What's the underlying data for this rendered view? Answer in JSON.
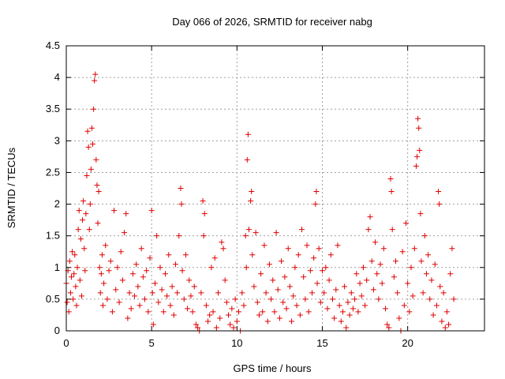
{
  "chart_data": {
    "type": "scatter",
    "title": "Day 066 of 2026, SRMTID for receiver nabg",
    "xlabel": "GPS time / hours",
    "ylabel": "SRMTID / TECUs",
    "xlim": [
      0,
      24.5
    ],
    "ylim": [
      0,
      4.5
    ],
    "x_ticks": [
      0,
      5,
      10,
      15,
      20
    ],
    "x_tick_labels": [
      "0",
      "5",
      "10",
      "15",
      "20"
    ],
    "y_ticks": [
      0,
      0.5,
      1,
      1.5,
      2,
      2.5,
      3,
      3.5,
      4,
      4.5
    ],
    "y_tick_labels": [
      "0",
      "0.5",
      "1",
      "1.5",
      "2",
      "2.5",
      "3",
      "3.5",
      "4",
      "4.5"
    ],
    "grid": true,
    "marker": "plus",
    "series": [
      {
        "name": "SRMTID",
        "color": "#e00000",
        "points": [
          [
            0.0,
            0.75
          ],
          [
            0.05,
            0.45
          ],
          [
            0.1,
            0.95
          ],
          [
            0.15,
            0.3
          ],
          [
            0.2,
            1.1
          ],
          [
            0.25,
            0.6
          ],
          [
            0.3,
            0.85
          ],
          [
            0.35,
            1.25
          ],
          [
            0.4,
            0.5
          ],
          [
            0.45,
            0.9
          ],
          [
            0.5,
            1.2
          ],
          [
            0.55,
            0.7
          ],
          [
            0.6,
            0.4
          ],
          [
            0.65,
            1.0
          ],
          [
            0.7,
            1.6
          ],
          [
            0.75,
            1.9
          ],
          [
            0.8,
            0.8
          ],
          [
            0.85,
            1.45
          ],
          [
            0.9,
            0.55
          ],
          [
            0.95,
            1.75
          ],
          [
            1.0,
            2.05
          ],
          [
            1.05,
            1.3
          ],
          [
            1.1,
            0.95
          ],
          [
            1.15,
            1.85
          ],
          [
            1.2,
            2.45
          ],
          [
            1.25,
            3.15
          ],
          [
            1.3,
            2.9
          ],
          [
            1.35,
            1.6
          ],
          [
            1.4,
            2.0
          ],
          [
            1.45,
            2.55
          ],
          [
            1.5,
            3.2
          ],
          [
            1.55,
            2.95
          ],
          [
            1.6,
            3.5
          ],
          [
            1.65,
            3.95
          ],
          [
            1.7,
            4.05
          ],
          [
            1.75,
            2.7
          ],
          [
            1.8,
            2.3
          ],
          [
            1.85,
            1.7
          ],
          [
            1.9,
            2.2
          ],
          [
            1.95,
            1.0
          ],
          [
            2.0,
            0.6
          ],
          [
            2.05,
            0.9
          ],
          [
            2.1,
            1.2
          ],
          [
            2.15,
            0.4
          ],
          [
            2.2,
            0.75
          ],
          [
            2.3,
            1.35
          ],
          [
            2.4,
            0.5
          ],
          [
            2.5,
            0.95
          ],
          [
            2.6,
            1.1
          ],
          [
            2.7,
            0.3
          ],
          [
            2.8,
            1.9
          ],
          [
            2.9,
            0.65
          ],
          [
            3.0,
            1.0
          ],
          [
            3.1,
            0.45
          ],
          [
            3.2,
            1.25
          ],
          [
            3.3,
            0.8
          ],
          [
            3.4,
            1.55
          ],
          [
            3.5,
            1.85
          ],
          [
            3.6,
            0.2
          ],
          [
            3.7,
            0.6
          ],
          [
            3.8,
            0.35
          ],
          [
            3.9,
            0.9
          ],
          [
            4.0,
            0.55
          ],
          [
            4.1,
            1.05
          ],
          [
            4.2,
            0.7
          ],
          [
            4.3,
            0.4
          ],
          [
            4.4,
            1.3
          ],
          [
            4.5,
            0.85
          ],
          [
            4.6,
            0.5
          ],
          [
            4.7,
            0.95
          ],
          [
            4.8,
            0.3
          ],
          [
            4.9,
            1.15
          ],
          [
            5.0,
            1.9
          ],
          [
            5.05,
            0.6
          ],
          [
            5.1,
            0.1
          ],
          [
            5.2,
            0.75
          ],
          [
            5.3,
            1.5
          ],
          [
            5.4,
            0.45
          ],
          [
            5.5,
            1.0
          ],
          [
            5.6,
            0.65
          ],
          [
            5.7,
            0.3
          ],
          [
            5.8,
            0.9
          ],
          [
            5.9,
            0.55
          ],
          [
            6.0,
            1.2
          ],
          [
            6.1,
            0.4
          ],
          [
            6.2,
            0.7
          ],
          [
            6.3,
            0.25
          ],
          [
            6.4,
            1.05
          ],
          [
            6.5,
            0.6
          ],
          [
            6.6,
            1.5
          ],
          [
            6.7,
            2.25
          ],
          [
            6.75,
            2.0
          ],
          [
            6.8,
            0.95
          ],
          [
            6.9,
            0.5
          ],
          [
            7.0,
            1.2
          ],
          [
            7.1,
            0.35
          ],
          [
            7.2,
            0.8
          ],
          [
            7.3,
            0.55
          ],
          [
            7.4,
            0.3
          ],
          [
            7.5,
            0.7
          ],
          [
            7.6,
            0.1
          ],
          [
            7.7,
            0.05
          ],
          [
            7.8,
            0.0
          ],
          [
            7.9,
            0.6
          ],
          [
            8.0,
            2.05
          ],
          [
            8.05,
            1.5
          ],
          [
            8.1,
            1.85
          ],
          [
            8.2,
            0.4
          ],
          [
            8.3,
            0.15
          ],
          [
            8.4,
            0.25
          ],
          [
            8.5,
            1.0
          ],
          [
            8.6,
            0.3
          ],
          [
            8.7,
            1.15
          ],
          [
            8.8,
            0.05
          ],
          [
            8.9,
            0.6
          ],
          [
            9.0,
            0.2
          ],
          [
            9.1,
            1.4
          ],
          [
            9.2,
            1.3
          ],
          [
            9.3,
            0.8
          ],
          [
            9.4,
            0.45
          ],
          [
            9.5,
            0.25
          ],
          [
            9.6,
            0.1
          ],
          [
            9.7,
            0.35
          ],
          [
            9.8,
            0.05
          ],
          [
            9.9,
            0.5
          ],
          [
            10.0,
            0.15
          ],
          [
            10.1,
            0.3
          ],
          [
            10.2,
            0.0
          ],
          [
            10.3,
            0.6
          ],
          [
            10.4,
            0.4
          ],
          [
            10.5,
            1.5
          ],
          [
            10.55,
            1.0
          ],
          [
            10.6,
            2.7
          ],
          [
            10.65,
            3.1
          ],
          [
            10.7,
            1.6
          ],
          [
            10.8,
            2.05
          ],
          [
            10.85,
            2.2
          ],
          [
            10.9,
            1.2
          ],
          [
            11.0,
            0.7
          ],
          [
            11.1,
            1.55
          ],
          [
            11.2,
            0.45
          ],
          [
            11.3,
            0.25
          ],
          [
            11.4,
            0.9
          ],
          [
            11.5,
            0.3
          ],
          [
            11.6,
            1.35
          ],
          [
            11.7,
            0.6
          ],
          [
            11.8,
            0.15
          ],
          [
            11.9,
            1.05
          ],
          [
            12.0,
            0.5
          ],
          [
            12.1,
            0.8
          ],
          [
            12.2,
            0.3
          ],
          [
            12.3,
            1.55
          ],
          [
            12.4,
            0.65
          ],
          [
            12.5,
            0.2
          ],
          [
            12.6,
            1.1
          ],
          [
            12.7,
            0.45
          ],
          [
            12.8,
            0.85
          ],
          [
            12.9,
            0.35
          ],
          [
            13.0,
            1.3
          ],
          [
            13.1,
            0.7
          ],
          [
            13.2,
            0.15
          ],
          [
            13.3,
            0.55
          ],
          [
            13.4,
            1.0
          ],
          [
            13.5,
            0.4
          ],
          [
            13.6,
            1.2
          ],
          [
            13.7,
            0.25
          ],
          [
            13.8,
            1.6
          ],
          [
            13.9,
            0.85
          ],
          [
            14.0,
            0.5
          ],
          [
            14.1,
            1.35
          ],
          [
            14.2,
            0.3
          ],
          [
            14.3,
            0.95
          ],
          [
            14.4,
            0.6
          ],
          [
            14.5,
            1.15
          ],
          [
            14.6,
            2.0
          ],
          [
            14.65,
            2.2
          ],
          [
            14.7,
            0.75
          ],
          [
            14.8,
            1.3
          ],
          [
            14.9,
            0.45
          ],
          [
            15.0,
            0.95
          ],
          [
            15.1,
            0.6
          ],
          [
            15.2,
            1.0
          ],
          [
            15.3,
            0.35
          ],
          [
            15.4,
            0.8
          ],
          [
            15.5,
            1.2
          ],
          [
            15.6,
            0.5
          ],
          [
            15.7,
            0.2
          ],
          [
            15.8,
            0.65
          ],
          [
            15.9,
            1.35
          ],
          [
            16.0,
            0.4
          ],
          [
            16.1,
            0.15
          ],
          [
            16.2,
            0.3
          ],
          [
            16.3,
            0.7
          ],
          [
            16.4,
            0.05
          ],
          [
            16.5,
            0.45
          ],
          [
            16.6,
            0.25
          ],
          [
            16.7,
            0.6
          ],
          [
            16.8,
            0.35
          ],
          [
            16.9,
            0.5
          ],
          [
            17.0,
            0.9
          ],
          [
            17.1,
            0.3
          ],
          [
            17.2,
            0.75
          ],
          [
            17.3,
            0.55
          ],
          [
            17.4,
            1.0
          ],
          [
            17.5,
            0.4
          ],
          [
            17.6,
            0.8
          ],
          [
            17.7,
            1.6
          ],
          [
            17.8,
            1.8
          ],
          [
            17.9,
            1.1
          ],
          [
            18.0,
            0.65
          ],
          [
            18.1,
            1.4
          ],
          [
            18.2,
            0.9
          ],
          [
            18.3,
            0.5
          ],
          [
            18.4,
            1.05
          ],
          [
            18.5,
            0.75
          ],
          [
            18.6,
            1.3
          ],
          [
            18.7,
            0.35
          ],
          [
            18.8,
            0.1
          ],
          [
            18.9,
            0.05
          ],
          [
            19.0,
            2.4
          ],
          [
            19.05,
            2.2
          ],
          [
            19.1,
            1.6
          ],
          [
            19.2,
            0.85
          ],
          [
            19.3,
            1.1
          ],
          [
            19.4,
            0.6
          ],
          [
            19.5,
            0.2
          ],
          [
            19.6,
            0.0
          ],
          [
            19.7,
            1.25
          ],
          [
            19.8,
            0.4
          ],
          [
            19.9,
            1.7
          ],
          [
            20.0,
            0.75
          ],
          [
            20.1,
            0.3
          ],
          [
            20.2,
            1.0
          ],
          [
            20.3,
            0.55
          ],
          [
            20.4,
            1.3
          ],
          [
            20.5,
            2.6
          ],
          [
            20.55,
            2.75
          ],
          [
            20.6,
            3.35
          ],
          [
            20.65,
            3.2
          ],
          [
            20.7,
            2.85
          ],
          [
            20.75,
            1.85
          ],
          [
            20.8,
            1.1
          ],
          [
            20.9,
            0.6
          ],
          [
            21.0,
            1.5
          ],
          [
            21.1,
            0.9
          ],
          [
            21.2,
            1.2
          ],
          [
            21.3,
            0.5
          ],
          [
            21.4,
            0.8
          ],
          [
            21.5,
            0.25
          ],
          [
            21.6,
            1.05
          ],
          [
            21.7,
            0.4
          ],
          [
            21.8,
            2.2
          ],
          [
            21.85,
            2.0
          ],
          [
            21.9,
            0.7
          ],
          [
            22.0,
            0.15
          ],
          [
            22.1,
            0.6
          ],
          [
            22.2,
            0.05
          ],
          [
            22.3,
            0.3
          ],
          [
            22.4,
            0.1
          ],
          [
            22.5,
            0.9
          ],
          [
            22.6,
            1.3
          ],
          [
            22.7,
            0.5
          ]
        ]
      }
    ]
  }
}
